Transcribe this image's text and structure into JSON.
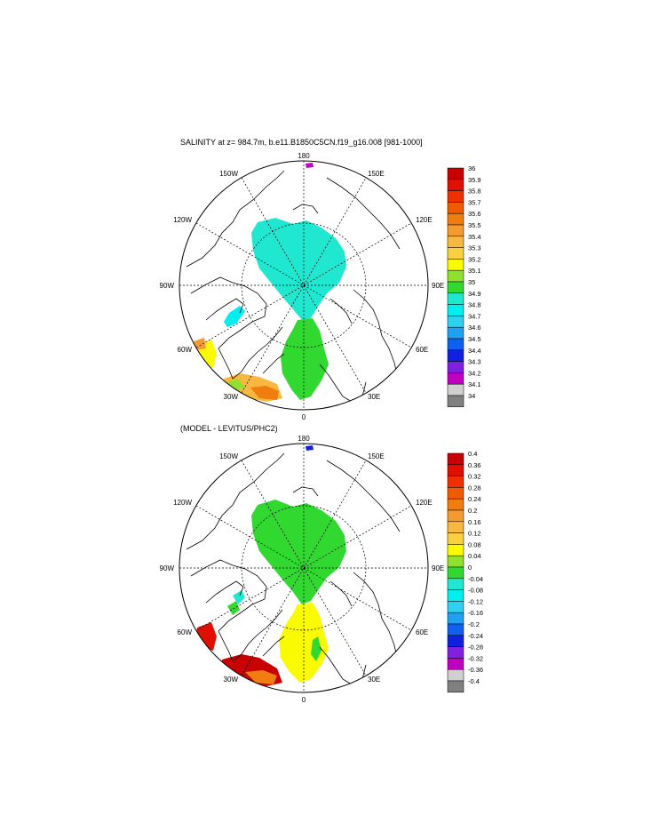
{
  "panel_top": {
    "title": "SALINITY at z= 984.7m, b.e11.B1850C5CN.f19_g16.008 [981-1000]",
    "longitude_labels": {
      "top": "180",
      "bottom": "0",
      "left": "90W",
      "right": "90E",
      "upper_left_1": "150W",
      "upper_left_2": "120W",
      "upper_right_1": "150E",
      "upper_right_2": "120E",
      "lower_left_1": "60W",
      "lower_left_2": "30W",
      "lower_right_1": "60E",
      "lower_right_2": "30E"
    },
    "colorbar": {
      "labels": [
        "36",
        "35.9",
        "35.8",
        "35.7",
        "35.6",
        "35.5",
        "35.4",
        "35.3",
        "35.2",
        "35.1",
        "35",
        "34.9",
        "34.8",
        "34.7",
        "34.6",
        "34.5",
        "34.4",
        "34.3",
        "34.2",
        "34.1",
        "34"
      ],
      "colors": [
        "#c80000",
        "#e01000",
        "#f03000",
        "#f05a00",
        "#f07d10",
        "#f59a30",
        "#f8b840",
        "#fad040",
        "#fafa00",
        "#90e030",
        "#30d830",
        "#20e8d0",
        "#00f0f0",
        "#30d0f0",
        "#20a0f0",
        "#1060f0",
        "#1020e0",
        "#8020e0",
        "#c000c0",
        "#d0d0d0",
        "#808080"
      ]
    }
  },
  "panel_bottom": {
    "title": "(MODEL - LEVITUS/PHC2)",
    "longitude_labels": {
      "top": "180",
      "bottom": "0",
      "left": "90W",
      "right": "90E",
      "upper_left_1": "150W",
      "upper_left_2": "120W",
      "upper_right_1": "150E",
      "upper_right_2": "120E",
      "lower_left_1": "60W",
      "lower_left_2": "30W",
      "lower_right_1": "60E",
      "lower_right_2": "30E"
    },
    "colorbar": {
      "labels": [
        "0.4",
        "0.36",
        "0.32",
        "0.28",
        "0.24",
        "0.2",
        "0.16",
        "0.12",
        "0.08",
        "0.04",
        "0",
        "-0.04",
        "-0.08",
        "-0.12",
        "-0.16",
        "-0.2",
        "-0.24",
        "-0.28",
        "-0.32",
        "-0.36",
        "-0.4"
      ],
      "colors": [
        "#c80000",
        "#e01000",
        "#f03000",
        "#f05a00",
        "#f07d10",
        "#f59a30",
        "#f8b840",
        "#fad040",
        "#fafa00",
        "#90e030",
        "#30d830",
        "#20e8d0",
        "#00f0f0",
        "#30d0f0",
        "#20a0f0",
        "#1060f0",
        "#1020e0",
        "#8020e0",
        "#c000c0",
        "#d0d0d0",
        "#808080"
      ]
    }
  }
}
